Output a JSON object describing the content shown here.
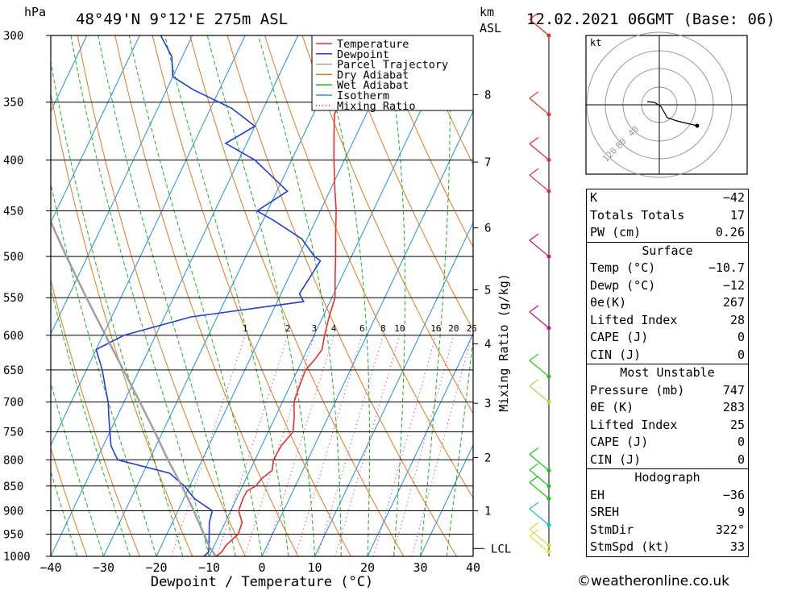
{
  "header": {
    "location": "48°49'N  9°12'E  275m  ASL",
    "datetime": "12.02.2021  06GMT  (Base: 06)",
    "pressure_unit": "hPa",
    "height_unit_1": "km",
    "height_unit_2": "ASL"
  },
  "chart_data": {
    "type": "line",
    "title": "",
    "xlabel": "Dewpoint / Temperature (°C)",
    "ylabel": "hPa",
    "secondary_ylabel": "Mixing Ratio (g/kg)",
    "xlim": [
      -40,
      40
    ],
    "ylim": [
      1000,
      300
    ],
    "x_ticks": [
      -40,
      -30,
      -20,
      -10,
      0,
      10,
      20,
      30,
      40
    ],
    "pressure_levels": [
      300,
      350,
      400,
      450,
      500,
      550,
      600,
      650,
      700,
      750,
      800,
      850,
      900,
      950,
      1000
    ],
    "height_ticks_km": [
      1,
      2,
      3,
      4,
      5,
      6,
      7,
      8
    ],
    "height_tick_pressures": [
      900,
      796,
      702,
      612,
      540,
      468,
      402,
      344
    ],
    "lcl_label": "LCL",
    "lcl_pressure": 982,
    "mixing_ratio_labels": [
      "1",
      "2",
      "3",
      "4",
      "6",
      "8",
      "10",
      "16",
      "20",
      "25"
    ],
    "mixing_ratio_label_pressure": 600,
    "legend": {
      "placement": "top-right",
      "entries": [
        {
          "name": "Temperature",
          "color": "#e83030",
          "style": "solid"
        },
        {
          "name": "Dewpoint",
          "color": "#2040d0",
          "style": "solid"
        },
        {
          "name": "Parcel Trajectory",
          "color": "#a0a0a0",
          "style": "solid"
        },
        {
          "name": "Dry Adiabat",
          "color": "#e07a20",
          "style": "solid"
        },
        {
          "name": "Wet Adiabat",
          "color": "#20b020",
          "style": "solid"
        },
        {
          "name": "Isotherm",
          "color": "#2090e0",
          "style": "solid"
        },
        {
          "name": "Mixing Ratio",
          "color": "#c0108a",
          "style": "dotted"
        }
      ]
    },
    "series": [
      {
        "name": "Temperature",
        "color": "#e83030",
        "points": [
          [
            1000,
            -8.7
          ],
          [
            990,
            -8
          ],
          [
            975,
            -7.8
          ],
          [
            950,
            -6.5
          ],
          [
            925,
            -6.8
          ],
          [
            900,
            -8.5
          ],
          [
            875,
            -8.8
          ],
          [
            860,
            -8.7
          ],
          [
            850,
            -7.5
          ],
          [
            835,
            -7
          ],
          [
            820,
            -5.8
          ],
          [
            800,
            -6.5
          ],
          [
            775,
            -6.3
          ],
          [
            750,
            -5.3
          ],
          [
            725,
            -6.4
          ],
          [
            700,
            -7.8
          ],
          [
            675,
            -8.2
          ],
          [
            650,
            -8.5
          ],
          [
            635,
            -7.7
          ],
          [
            620,
            -7.2
          ],
          [
            600,
            -8
          ],
          [
            575,
            -8.8
          ],
          [
            550,
            -9.4
          ],
          [
            525,
            -11.2
          ],
          [
            500,
            -13
          ],
          [
            475,
            -15
          ],
          [
            450,
            -17
          ],
          [
            425,
            -19.5
          ],
          [
            400,
            -22
          ],
          [
            375,
            -24.5
          ],
          [
            360,
            -26
          ],
          [
            350,
            -26
          ],
          [
            325,
            -28
          ],
          [
            300,
            -31
          ]
        ]
      },
      {
        "name": "Dewpoint",
        "color": "#2040d0",
        "points": [
          [
            1000,
            -11
          ],
          [
            990,
            -10.5
          ],
          [
            975,
            -11
          ],
          [
            950,
            -12
          ],
          [
            925,
            -13
          ],
          [
            900,
            -13.5
          ],
          [
            875,
            -18
          ],
          [
            850,
            -21
          ],
          [
            825,
            -25
          ],
          [
            800,
            -36
          ],
          [
            775,
            -38.5
          ],
          [
            750,
            -40
          ],
          [
            725,
            -41.5
          ],
          [
            700,
            -43
          ],
          [
            675,
            -45
          ],
          [
            650,
            -47
          ],
          [
            620,
            -50
          ],
          [
            600,
            -46
          ],
          [
            575,
            -35
          ],
          [
            555,
            -15
          ],
          [
            545,
            -16.5
          ],
          [
            525,
            -16
          ],
          [
            505,
            -15.5
          ],
          [
            500,
            -17
          ],
          [
            480,
            -21
          ],
          [
            460,
            -28
          ],
          [
            450,
            -32
          ],
          [
            430,
            -28
          ],
          [
            400,
            -37
          ],
          [
            385,
            -44
          ],
          [
            370,
            -40
          ],
          [
            355,
            -46
          ],
          [
            340,
            -55
          ],
          [
            330,
            -60
          ],
          [
            315,
            -62
          ],
          [
            300,
            -66
          ]
        ]
      },
      {
        "name": "Parcel Trajectory",
        "color": "#a0a0a0",
        "points": [
          [
            1000,
            -8.7
          ],
          [
            982,
            -10.5
          ],
          [
            950,
            -13
          ],
          [
            900,
            -17
          ],
          [
            850,
            -21.5
          ],
          [
            800,
            -26.5
          ],
          [
            750,
            -31.5
          ],
          [
            700,
            -37
          ],
          [
            650,
            -43
          ],
          [
            600,
            -49.5
          ],
          [
            550,
            -56.5
          ],
          [
            500,
            -64
          ],
          [
            450,
            -72
          ],
          [
            400,
            -81
          ],
          [
            350,
            -91
          ],
          [
            300,
            -102
          ]
        ]
      }
    ]
  },
  "hodograph": {
    "unit_label": "kt",
    "ring_labels": [
      "40",
      "80",
      "120"
    ]
  },
  "indices": {
    "general": [
      {
        "label": "K",
        "value": "-42"
      },
      {
        "label": "Totals Totals",
        "value": "17"
      },
      {
        "label": "PW (cm)",
        "value": "0.26"
      }
    ],
    "surface_title": "Surface",
    "surface": [
      {
        "label": "Temp (°C)",
        "value": "-10.7"
      },
      {
        "label": "Dewp (°C)",
        "value": "-12"
      },
      {
        "label": "θe(K)",
        "value": "267"
      },
      {
        "label": "Lifted Index",
        "value": "28"
      },
      {
        "label": "CAPE (J)",
        "value": "0"
      },
      {
        "label": "CIN (J)",
        "value": "0"
      }
    ],
    "mu_title": "Most Unstable",
    "most_unstable": [
      {
        "label": "Pressure (mb)",
        "value": "747"
      },
      {
        "label": "θE (K)",
        "value": "283"
      },
      {
        "label": "Lifted Index",
        "value": "25"
      },
      {
        "label": "CAPE (J)",
        "value": "0"
      },
      {
        "label": "CIN (J)",
        "value": "0"
      }
    ],
    "hodo_title": "Hodograph",
    "hodo": [
      {
        "label": "EH",
        "value": "-36"
      },
      {
        "label": "SREH",
        "value": "9"
      },
      {
        "label": "StmDir",
        "value": "322°"
      },
      {
        "label": "StmSpd (kt)",
        "value": "33"
      }
    ]
  },
  "footer": {
    "credit": "©weatheronline.co.uk"
  }
}
